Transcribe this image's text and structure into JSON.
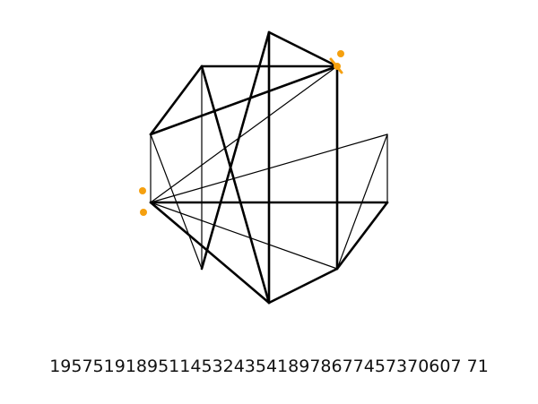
{
  "puzzle": {
    "nodes": [
      {
        "id": "n1"
      },
      {
        "id": "n2"
      },
      {
        "id": "n3"
      },
      {
        "id": "n4"
      },
      {
        "id": "n5"
      },
      {
        "id": "n6"
      },
      {
        "id": "n7"
      },
      {
        "id": "n8"
      },
      {
        "id": "n9"
      },
      {
        "id": "n10"
      }
    ],
    "edges": [
      {
        "from": "n1",
        "to": "n2",
        "weight": "thick"
      },
      {
        "from": "n2",
        "to": "n10",
        "weight": "thick"
      },
      {
        "from": "n1",
        "to": "n3",
        "weight": "thick"
      },
      {
        "from": "n1",
        "to": "n6",
        "weight": "thin"
      },
      {
        "from": "n1",
        "to": "n7",
        "weight": "thick"
      },
      {
        "from": "n2",
        "to": "n3",
        "weight": "thick"
      },
      {
        "from": "n2",
        "to": "n4",
        "weight": "thin"
      },
      {
        "from": "n3",
        "to": "n4",
        "weight": "thin"
      },
      {
        "from": "n3",
        "to": "n6",
        "weight": "thin"
      },
      {
        "from": "n4",
        "to": "n5",
        "weight": "thick"
      },
      {
        "from": "n4",
        "to": "n7",
        "weight": "thick"
      },
      {
        "from": "n4",
        "to": "n9",
        "weight": "thin"
      },
      {
        "from": "n4",
        "to": "n8",
        "weight": "thin"
      },
      {
        "from": "n6",
        "to": "n10",
        "weight": "thick"
      },
      {
        "from": "n10",
        "to": "n7",
        "weight": "thick"
      },
      {
        "from": "n7",
        "to": "n9",
        "weight": "thick"
      },
      {
        "from": "n2",
        "to": "n9",
        "weight": "thick"
      },
      {
        "from": "n9",
        "to": "n5",
        "weight": "thick"
      },
      {
        "from": "n5",
        "to": "n8",
        "weight": "thin"
      },
      {
        "from": "n9",
        "to": "n8",
        "weight": "thin"
      }
    ],
    "markers": [
      {
        "id": "m1"
      },
      {
        "id": "m2"
      },
      {
        "id": "m3"
      }
    ],
    "colors": {
      "edge": "#000000",
      "marker": "#f5a00f"
    }
  },
  "code": "19575191895114532435418978677457370607 71"
}
